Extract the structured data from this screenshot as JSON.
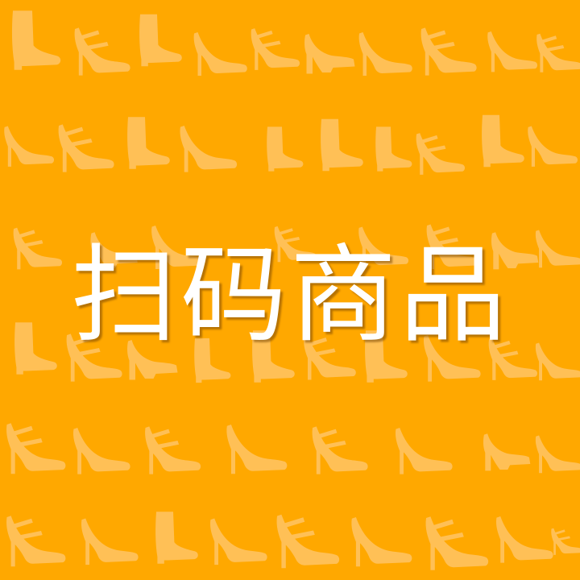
{
  "banner": {
    "title": "扫码商品",
    "pattern_icon": "shoe-silhouette-icon"
  },
  "colors": {
    "background": "#ffa800",
    "pattern": "#ffc566",
    "title_text": "#ffffff"
  }
}
